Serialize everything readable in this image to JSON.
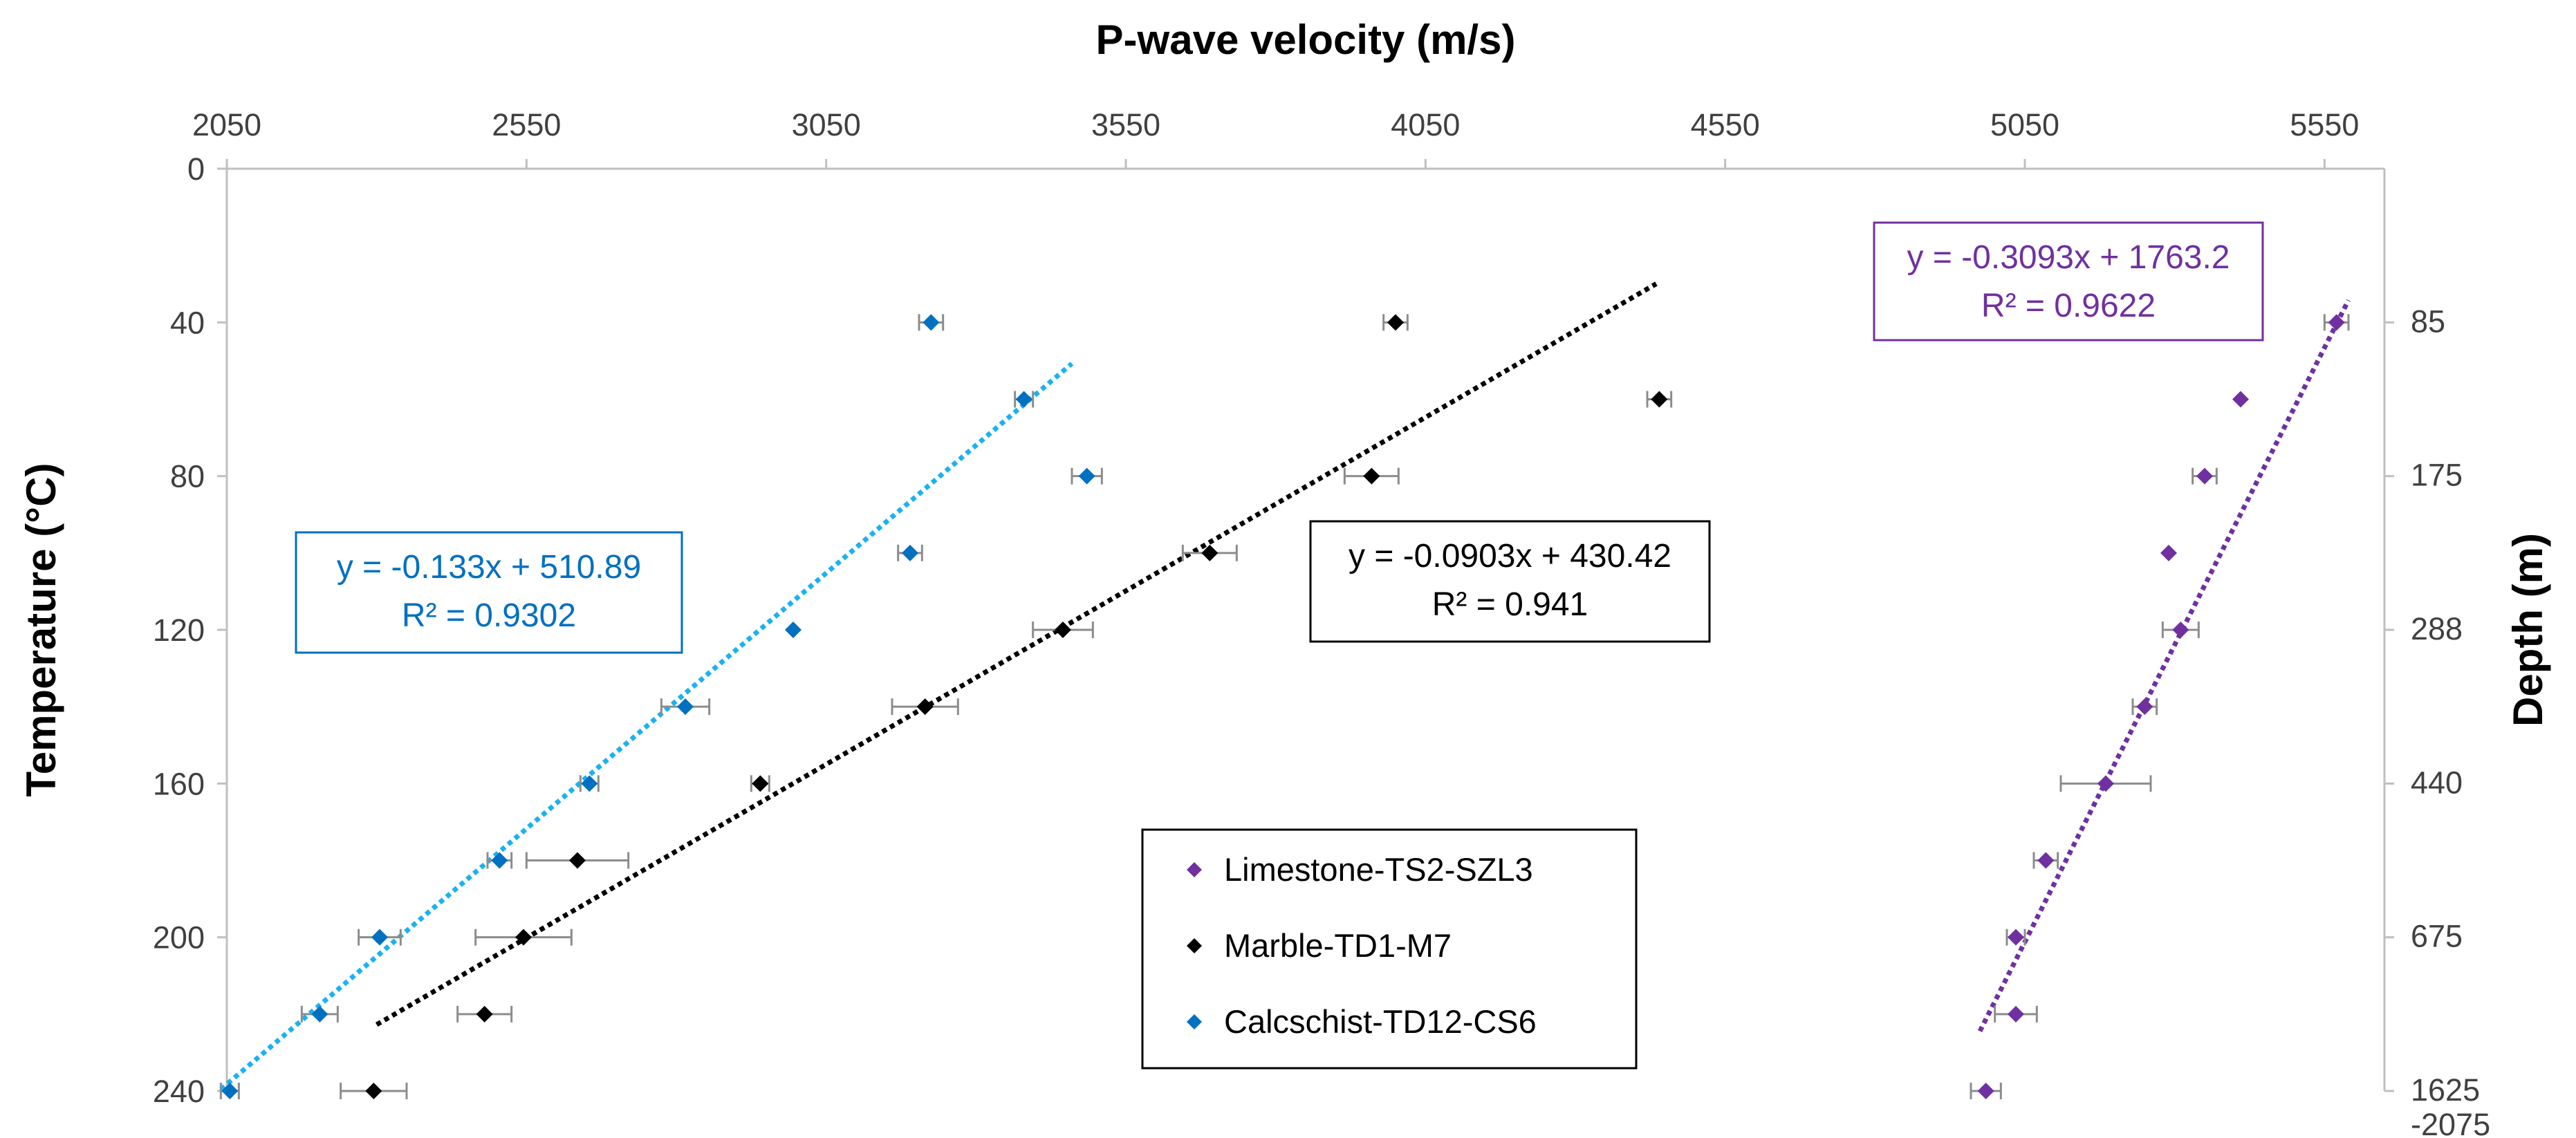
{
  "chart_data": {
    "type": "scatter",
    "title": "",
    "x_axis": {
      "label": "P-wave velocity (m/s)",
      "position": "top",
      "range": [
        2050,
        5650
      ],
      "ticks": [
        2050,
        2550,
        3050,
        3550,
        4050,
        4550,
        5050,
        5550
      ]
    },
    "y_axis": {
      "label": "Temperature (°C)",
      "range": [
        0,
        240
      ],
      "reversed": true,
      "ticks": [
        0,
        40,
        80,
        120,
        160,
        200,
        240
      ]
    },
    "secondary_y_axis": {
      "label": "Depth (m)",
      "tick_labels": [
        {
          "at_temperature": 40,
          "text": "85"
        },
        {
          "at_temperature": 80,
          "text": "175"
        },
        {
          "at_temperature": 120,
          "text": "288"
        },
        {
          "at_temperature": 160,
          "text": "440"
        },
        {
          "at_temperature": 200,
          "text": "675"
        },
        {
          "at_temperature": 240,
          "text": "1625"
        },
        {
          "at_temperature": 240,
          "text": "-2075",
          "below": true
        }
      ]
    },
    "series": [
      {
        "name": "Limestone-TS2-SZL3",
        "color": "#7030a0",
        "points": [
          {
            "x": 5570,
            "y": 40,
            "err": 20
          },
          {
            "x": 5410,
            "y": 60,
            "err": 0
          },
          {
            "x": 5350,
            "y": 80,
            "err": 20
          },
          {
            "x": 5290,
            "y": 100,
            "err": 0
          },
          {
            "x": 5310,
            "y": 120,
            "err": 30
          },
          {
            "x": 5250,
            "y": 140,
            "err": 20
          },
          {
            "x": 5185,
            "y": 160,
            "err": 75
          },
          {
            "x": 5085,
            "y": 180,
            "err": 20
          },
          {
            "x": 5035,
            "y": 200,
            "err": 15
          },
          {
            "x": 5035,
            "y": 220,
            "err": 35
          },
          {
            "x": 4985,
            "y": 240,
            "err": 25
          }
        ],
        "trendline": {
          "equation": "y = -0.3093x + 1763.2",
          "r2": "R² = 0.9622",
          "slope": -0.3093,
          "intercept": 1763.2,
          "x_from": 4975,
          "x_to": 5590,
          "text_color": "#7030a0",
          "line_color": "#7030a0"
        }
      },
      {
        "name": "Marble-TD1-M7",
        "color": "#000000",
        "points": [
          {
            "x": 4000,
            "y": 40,
            "err": 20
          },
          {
            "x": 4440,
            "y": 60,
            "err": 20
          },
          {
            "x": 3960,
            "y": 80,
            "err": 45
          },
          {
            "x": 3690,
            "y": 100,
            "err": 45
          },
          {
            "x": 3445,
            "y": 120,
            "err": 50
          },
          {
            "x": 3215,
            "y": 140,
            "err": 55
          },
          {
            "x": 2940,
            "y": 160,
            "err": 15
          },
          {
            "x": 2635,
            "y": 180,
            "err": 85
          },
          {
            "x": 2545,
            "y": 200,
            "err": 80
          },
          {
            "x": 2480,
            "y": 220,
            "err": 45
          },
          {
            "x": 2295,
            "y": 240,
            "err": 55
          }
        ],
        "trendline": {
          "equation": "y = -0.0903x + 430.42",
          "r2": "R² = 0.941",
          "slope": -0.0903,
          "intercept": 430.42,
          "x_from": 2300,
          "x_to": 4435,
          "text_color": "#000000",
          "line_color": "#000000"
        }
      },
      {
        "name": "Calcschist-TD12-CS6",
        "color": "#0070c0",
        "points": [
          {
            "x": 3225,
            "y": 40,
            "err": 20
          },
          {
            "x": 3380,
            "y": 60,
            "err": 15
          },
          {
            "x": 3485,
            "y": 80,
            "err": 25
          },
          {
            "x": 3190,
            "y": 100,
            "err": 20
          },
          {
            "x": 2995,
            "y": 120,
            "err": 0
          },
          {
            "x": 2815,
            "y": 140,
            "err": 40
          },
          {
            "x": 2655,
            "y": 160,
            "err": 15
          },
          {
            "x": 2505,
            "y": 180,
            "err": 20
          },
          {
            "x": 2305,
            "y": 200,
            "err": 35
          },
          {
            "x": 2205,
            "y": 220,
            "err": 30
          },
          {
            "x": 2055,
            "y": 240,
            "err": 15
          }
        ],
        "trendline": {
          "equation": "y = -0.133x + 510.89",
          "r2": "R² = 0.9302",
          "slope": -0.133,
          "intercept": 510.89,
          "x_from": 2040,
          "x_to": 3460,
          "text_color": "#0070c0",
          "line_color": "#1ab2f0"
        }
      }
    ],
    "legend": {
      "position": "bottom-center",
      "entries": [
        "Limestone-TS2-SZL3",
        "Marble-TD1-M7",
        "Calcschist-TD12-CS6"
      ]
    }
  }
}
